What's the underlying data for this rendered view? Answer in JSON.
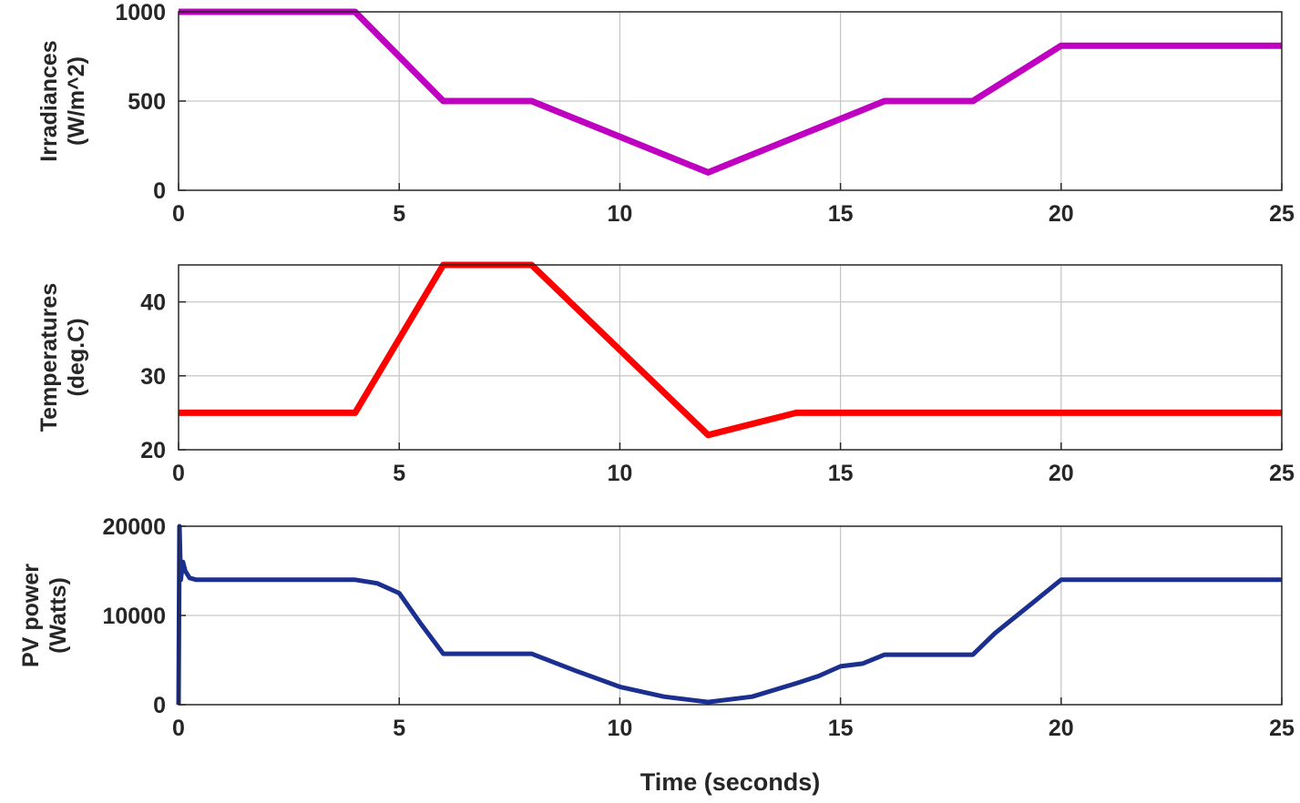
{
  "colors": {
    "irradiance": "#c000c0",
    "temperature": "#ff0000",
    "power": "#1a2f8f",
    "grid": "#c8c8c8",
    "axis": "#262626"
  },
  "figure": {
    "xlabel": "Time (seconds)"
  },
  "chart_data": [
    {
      "type": "line",
      "title": "",
      "ylabel_lines": [
        "Irradiances",
        "(W/m^2)"
      ],
      "xlim": [
        0,
        25
      ],
      "ylim": [
        0,
        1000
      ],
      "xticks": [
        0,
        5,
        10,
        15,
        20,
        25
      ],
      "xtick_labels": [
        "0",
        "5",
        "10",
        "15",
        "20",
        "25"
      ],
      "yticks": [
        0,
        500,
        1000
      ],
      "ytick_labels": [
        "0",
        "500",
        "1000"
      ],
      "grid": true,
      "series": [
        {
          "color": "#c000c0",
          "x": [
            0,
            4,
            6,
            8,
            12,
            16,
            18,
            20,
            25
          ],
          "y": [
            1000,
            1000,
            500,
            500,
            100,
            500,
            500,
            810,
            810
          ]
        }
      ]
    },
    {
      "type": "line",
      "title": "",
      "ylabel_lines": [
        "Temperatures",
        "(deg.C)"
      ],
      "xlim": [
        0,
        25
      ],
      "ylim": [
        20,
        45
      ],
      "xticks": [
        0,
        5,
        10,
        15,
        20,
        25
      ],
      "xtick_labels": [
        "0",
        "5",
        "10",
        "15",
        "20",
        "25"
      ],
      "yticks": [
        20,
        30,
        40
      ],
      "ytick_labels": [
        "20",
        "30",
        "40"
      ],
      "grid": true,
      "series": [
        {
          "color": "#ff0000",
          "x": [
            0,
            4,
            6,
            8,
            12,
            14,
            25
          ],
          "y": [
            25,
            25,
            45,
            45,
            22,
            25,
            25
          ]
        }
      ]
    },
    {
      "type": "line",
      "title": "",
      "ylabel_lines": [
        "PV power",
        "(Watts)"
      ],
      "xlim": [
        0,
        25
      ],
      "ylim": [
        0,
        20000
      ],
      "xticks": [
        0,
        5,
        10,
        15,
        20,
        25
      ],
      "xtick_labels": [
        "0",
        "5",
        "10",
        "15",
        "20",
        "25"
      ],
      "yticks": [
        0,
        10000,
        20000
      ],
      "ytick_labels": [
        "0",
        "10000",
        "20000"
      ],
      "grid": true,
      "series": [
        {
          "color": "#1a2f8f",
          "x": [
            0,
            0.02,
            0.05,
            0.1,
            0.15,
            0.25,
            0.4,
            1,
            2,
            3,
            4,
            4.5,
            5,
            5.5,
            6,
            7,
            8,
            9,
            10,
            11,
            12,
            13,
            14,
            14.5,
            15,
            15.5,
            16,
            17,
            18,
            18.5,
            19,
            19.5,
            20,
            21,
            22,
            23,
            24,
            25
          ],
          "y": [
            0,
            20000,
            14000,
            16000,
            15000,
            14200,
            14000,
            14000,
            14000,
            14000,
            14000,
            13600,
            12500,
            9000,
            5700,
            5700,
            5700,
            3800,
            2000,
            900,
            300,
            900,
            2400,
            3200,
            4300,
            4600,
            5600,
            5600,
            5600,
            8000,
            10000,
            12000,
            14000,
            14000,
            14000,
            14000,
            14000,
            14000
          ]
        }
      ]
    }
  ]
}
